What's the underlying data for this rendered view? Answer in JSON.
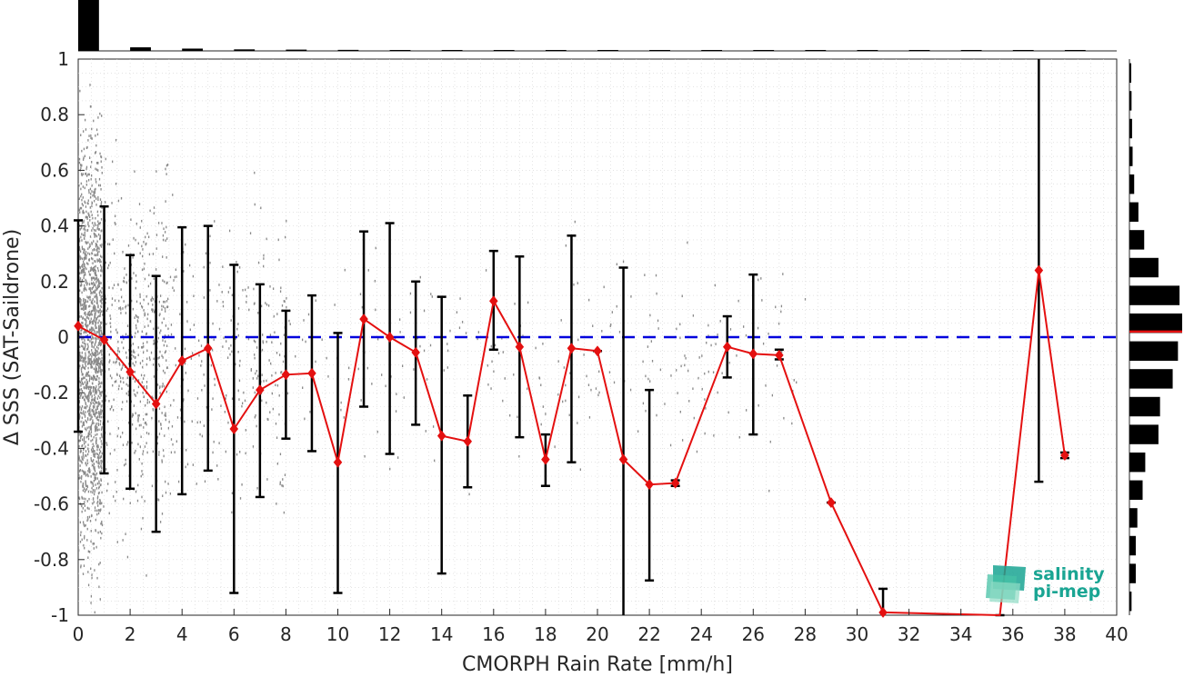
{
  "chart_data": {
    "type": "line",
    "xlabel": "CMORPH Rain Rate [mm/h]",
    "ylabel": "Δ SSS (SAT-Saildrone)",
    "xlim": [
      0,
      40
    ],
    "ylim": [
      -1,
      1
    ],
    "xticks": [
      "0",
      "2",
      "4",
      "6",
      "8",
      "10",
      "12",
      "14",
      "16",
      "18",
      "20",
      "22",
      "24",
      "26",
      "28",
      "30",
      "32",
      "34",
      "36",
      "38",
      "40"
    ],
    "yticks": [
      "-1",
      "-0.8",
      "-0.6",
      "-0.4",
      "-0.2",
      "0",
      "0.2",
      "0.4",
      "0.6",
      "0.8",
      "1"
    ],
    "grid": true,
    "reference_line": {
      "y": 0,
      "style": "dashed",
      "color": "#0000dd"
    },
    "series": [
      {
        "color": "#e41010",
        "points": [
          {
            "x": 0,
            "y": 0.04,
            "lo": -0.34,
            "hi": 0.42
          },
          {
            "x": 1,
            "y": -0.01,
            "lo": -0.49,
            "hi": 0.47
          },
          {
            "x": 2,
            "y": -0.125,
            "lo": -0.545,
            "hi": 0.295
          },
          {
            "x": 3,
            "y": -0.24,
            "lo": -0.7,
            "hi": 0.22
          },
          {
            "x": 4,
            "y": -0.085,
            "lo": -0.565,
            "hi": 0.395
          },
          {
            "x": 5,
            "y": -0.04,
            "lo": -0.48,
            "hi": 0.4
          },
          {
            "x": 6,
            "y": -0.33,
            "lo": -0.92,
            "hi": 0.26
          },
          {
            "x": 7,
            "y": -0.19,
            "lo": -0.575,
            "hi": 0.19
          },
          {
            "x": 8,
            "y": -0.135,
            "lo": -0.365,
            "hi": 0.095
          },
          {
            "x": 9,
            "y": -0.13,
            "lo": -0.41,
            "hi": 0.15
          },
          {
            "x": 10,
            "y": -0.45,
            "lo": -0.92,
            "hi": 0.015
          },
          {
            "x": 11,
            "y": 0.065,
            "lo": -0.25,
            "hi": 0.38
          },
          {
            "x": 12,
            "y": 0.0,
            "lo": -0.42,
            "hi": 0.41
          },
          {
            "x": 13,
            "y": -0.055,
            "lo": -0.315,
            "hi": 0.2
          },
          {
            "x": 14,
            "y": -0.355,
            "lo": -0.85,
            "hi": 0.145
          },
          {
            "x": 15,
            "y": -0.375,
            "lo": -0.54,
            "hi": -0.21
          },
          {
            "x": 16,
            "y": 0.13,
            "lo": -0.045,
            "hi": 0.31
          },
          {
            "x": 17,
            "y": -0.035,
            "lo": -0.36,
            "hi": 0.29
          },
          {
            "x": 18,
            "y": -0.44,
            "lo": -0.535,
            "hi": -0.35
          },
          {
            "x": 19,
            "y": -0.04,
            "lo": -0.45,
            "hi": 0.365
          },
          {
            "x": 20,
            "y": -0.05,
            "lo": -0.05,
            "hi": -0.05
          },
          {
            "x": 21,
            "y": -0.44,
            "lo": -1.0,
            "hi": 0.25
          },
          {
            "x": 22,
            "y": -0.53,
            "lo": -0.875,
            "hi": -0.19
          },
          {
            "x": 23,
            "y": -0.525,
            "lo": -0.535,
            "hi": -0.515
          },
          {
            "x": 25,
            "y": -0.035,
            "lo": -0.145,
            "hi": 0.075
          },
          {
            "x": 26,
            "y": -0.06,
            "lo": -0.35,
            "hi": 0.225
          },
          {
            "x": 27,
            "y": -0.065,
            "lo": -0.08,
            "hi": -0.045
          },
          {
            "x": 29,
            "y": -0.595,
            "lo": -0.595,
            "hi": -0.595
          },
          {
            "x": 31,
            "y": -0.99,
            "lo": -1.0,
            "hi": -0.905
          },
          {
            "x": 35.5,
            "y": -1.0,
            "lo": -1.0,
            "hi": -1.0
          },
          {
            "x": 37,
            "y": 0.24,
            "lo": -0.52,
            "hi": 1.0
          },
          {
            "x": 38,
            "y": -0.425,
            "lo": -0.435,
            "hi": -0.415
          }
        ]
      }
    ],
    "top_histogram": [
      1.0,
      0.07,
      0.045,
      0.03,
      0.025,
      0.02,
      0.015,
      0.012,
      0.01,
      0.008,
      0.006,
      0.005,
      0.004,
      0.003,
      0.003,
      0.003,
      0.002,
      0.002,
      0.002,
      0.001
    ],
    "right_histogram": [
      {
        "y": 0.95,
        "v": 0.03
      },
      {
        "y": 0.85,
        "v": 0.04
      },
      {
        "y": 0.75,
        "v": 0.05
      },
      {
        "y": 0.65,
        "v": 0.06
      },
      {
        "y": 0.55,
        "v": 0.09
      },
      {
        "y": 0.45,
        "v": 0.17
      },
      {
        "y": 0.35,
        "v": 0.28
      },
      {
        "y": 0.25,
        "v": 0.55
      },
      {
        "y": 0.15,
        "v": 0.95
      },
      {
        "y": 0.05,
        "v": 1.0
      },
      {
        "y": -0.05,
        "v": 0.92
      },
      {
        "y": -0.15,
        "v": 0.82
      },
      {
        "y": -0.25,
        "v": 0.58
      },
      {
        "y": -0.35,
        "v": 0.55
      },
      {
        "y": -0.45,
        "v": 0.3
      },
      {
        "y": -0.55,
        "v": 0.25
      },
      {
        "y": -0.65,
        "v": 0.15
      },
      {
        "y": -0.75,
        "v": 0.12
      },
      {
        "y": -0.85,
        "v": 0.12
      },
      {
        "y": -0.95,
        "v": 0.04
      }
    ],
    "right_histogram_marker": {
      "y": 0.02,
      "color": "#e41010"
    }
  },
  "logo": {
    "line1": "salinity",
    "line2": "pi-mep",
    "color": "#1aa593"
  }
}
